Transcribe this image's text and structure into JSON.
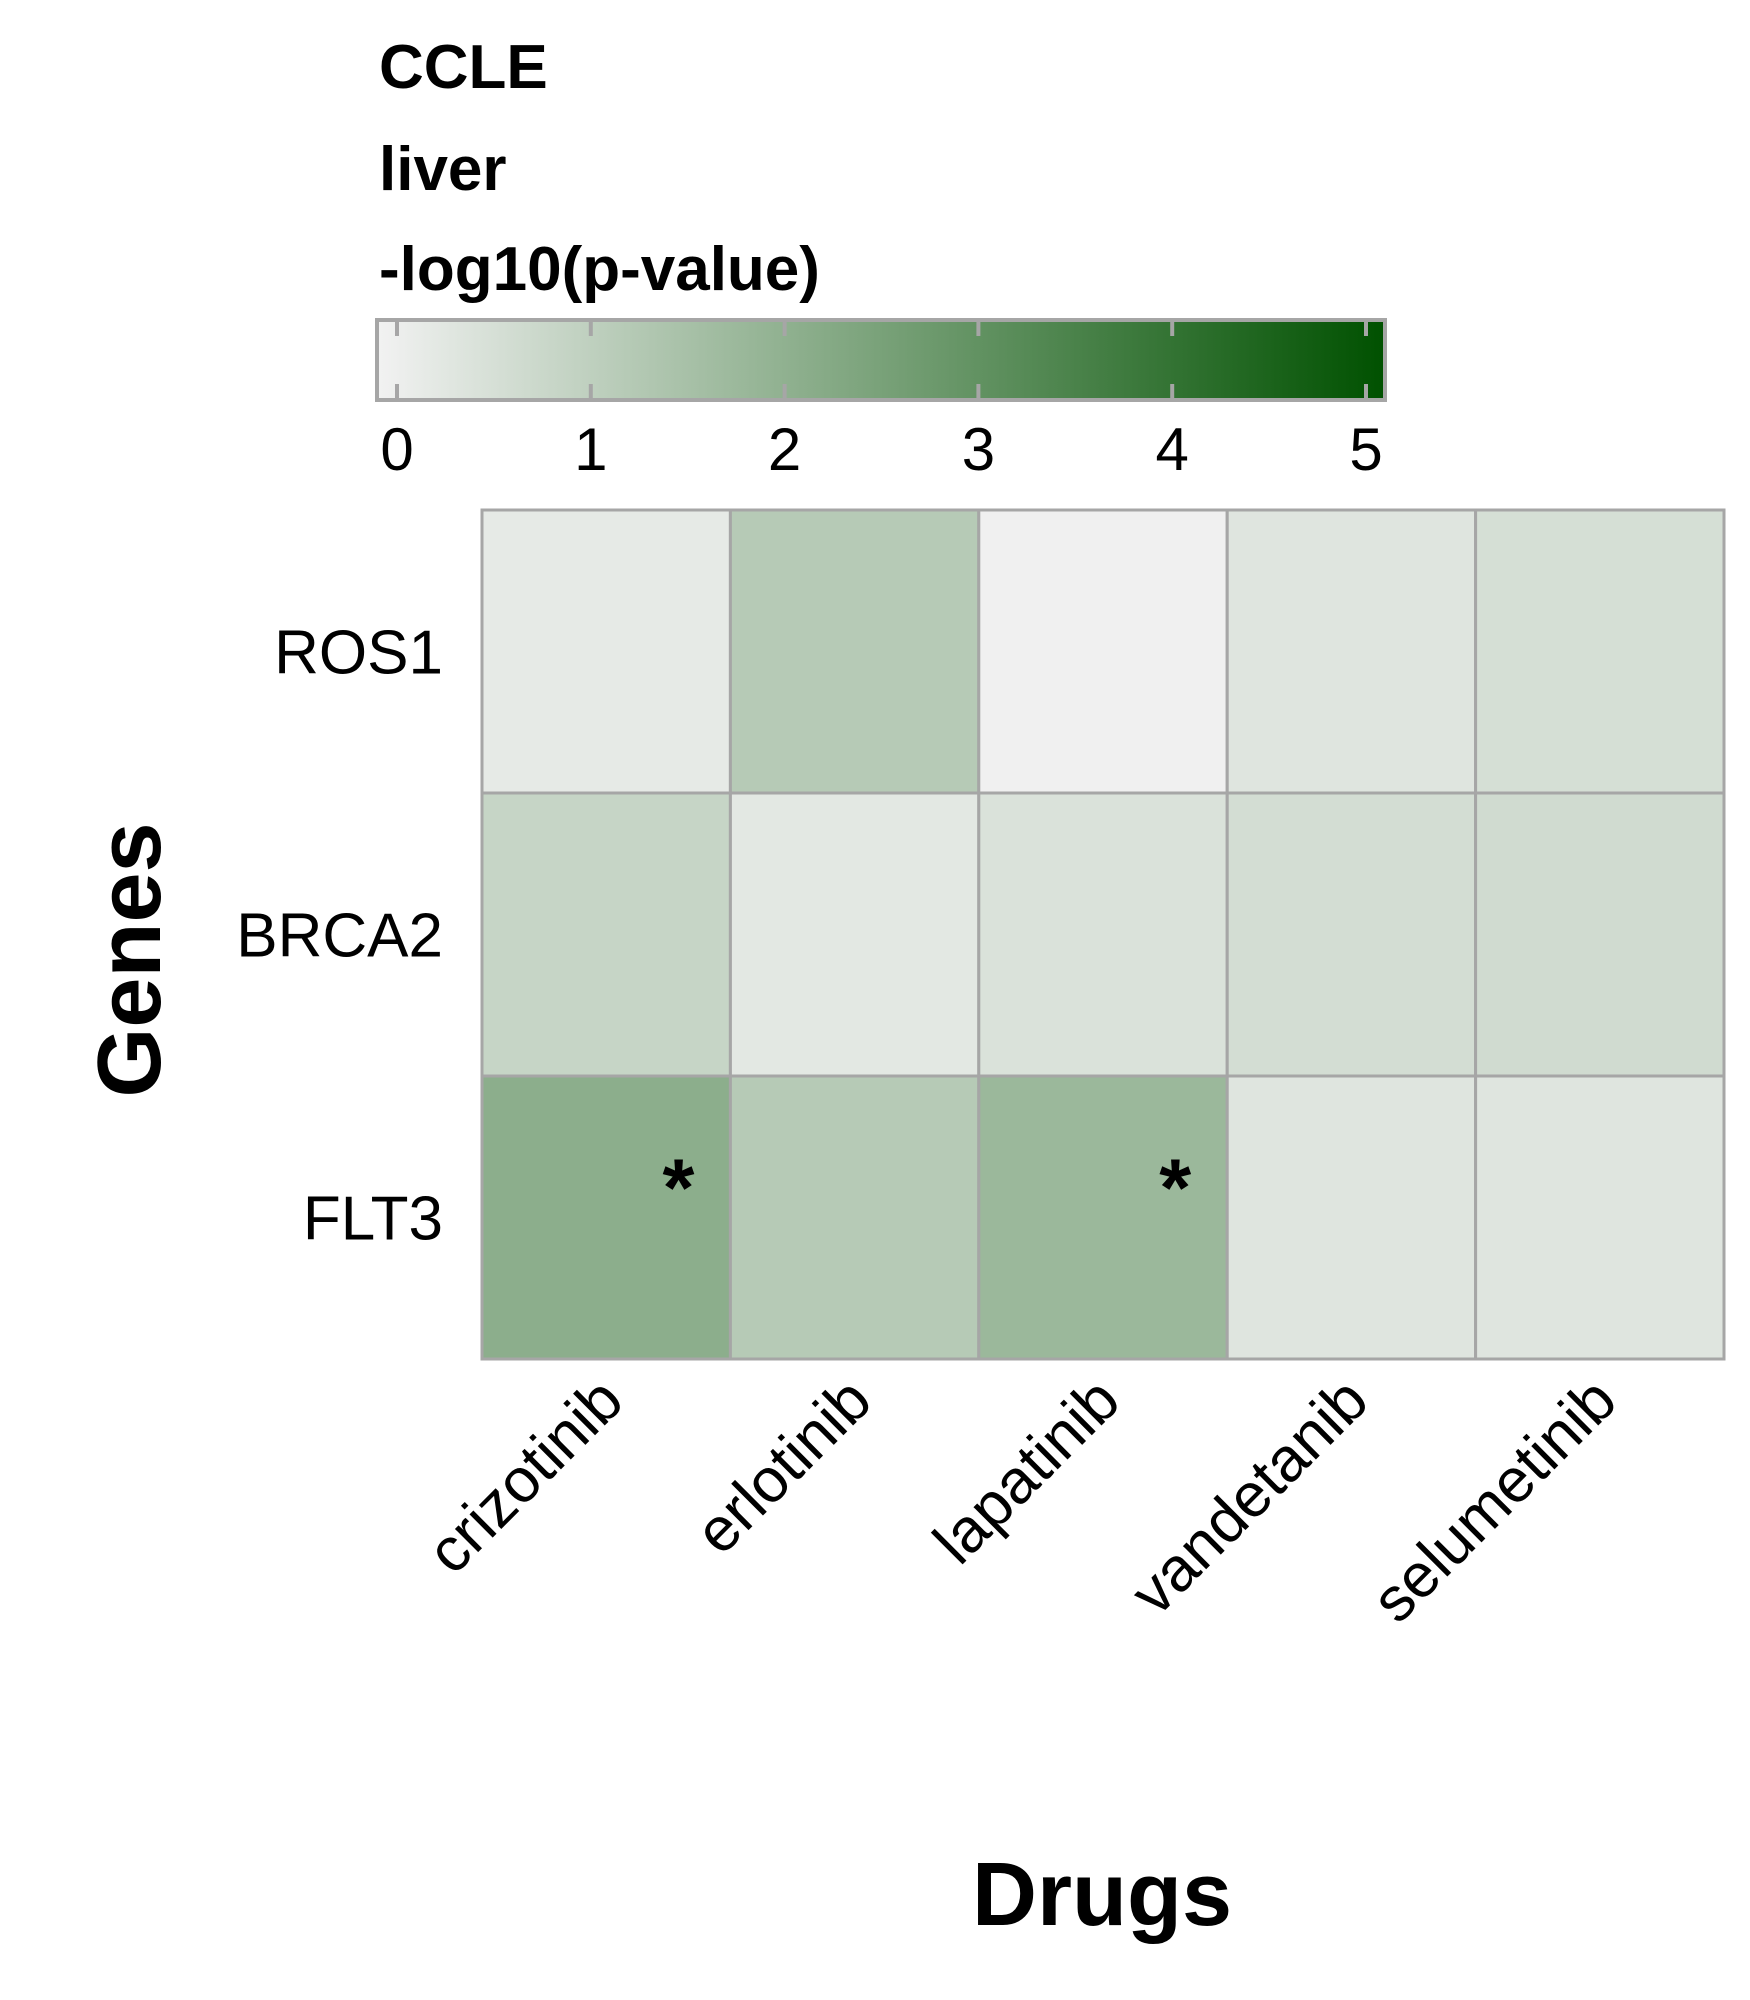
{
  "chart_data": {
    "type": "heatmap",
    "legend": {
      "title_lines": [
        "CCLE",
        "liver",
        "-log10(p-value)"
      ],
      "range": [
        0,
        5
      ],
      "ticks": [
        0,
        1,
        2,
        3,
        4,
        5
      ],
      "color_low": "#f2f2f2",
      "color_high": "#005100"
    },
    "ylabel": "Genes",
    "xlabel": "Drugs",
    "rows": [
      "ROS1",
      "BRCA2",
      "FLT3"
    ],
    "columns": [
      "crizotinib",
      "erlotinib",
      "lapatinib",
      "vandetanib",
      "selumetinib"
    ],
    "values": [
      [
        0.25,
        1.25,
        0.05,
        0.4,
        0.6
      ],
      [
        0.9,
        0.3,
        0.5,
        0.65,
        0.7
      ],
      [
        2.1,
        1.25,
        1.8,
        0.4,
        0.4
      ]
    ],
    "significant": [
      [
        2,
        0
      ],
      [
        2,
        2
      ]
    ],
    "significance_marker": "*",
    "grid_color": "#a6a6a6"
  }
}
